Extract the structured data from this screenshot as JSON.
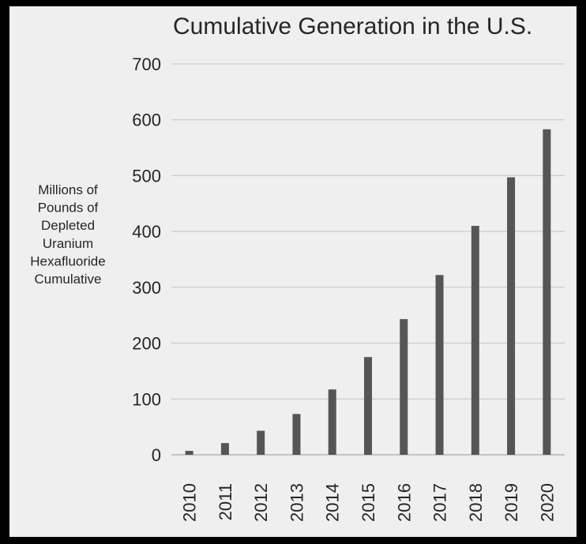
{
  "chart_data": {
    "type": "bar",
    "title": "Cumulative Generation in the U.S.",
    "ylabel_lines": [
      "Millions of",
      "Pounds of",
      "Depleted",
      "Uranium",
      "Hexafluoride",
      "Cumulative"
    ],
    "xlabel": "",
    "categories": [
      "2010",
      "2011",
      "2012",
      "2013",
      "2014",
      "2015",
      "2016",
      "2017",
      "2018",
      "2019",
      "2020"
    ],
    "values": [
      7,
      21,
      43,
      73,
      117,
      175,
      243,
      322,
      410,
      497,
      583
    ],
    "ylim": [
      0,
      700
    ],
    "yticks": [
      0,
      100,
      200,
      300,
      400,
      500,
      600,
      700
    ],
    "grid": true,
    "bar_color": "#555555"
  }
}
